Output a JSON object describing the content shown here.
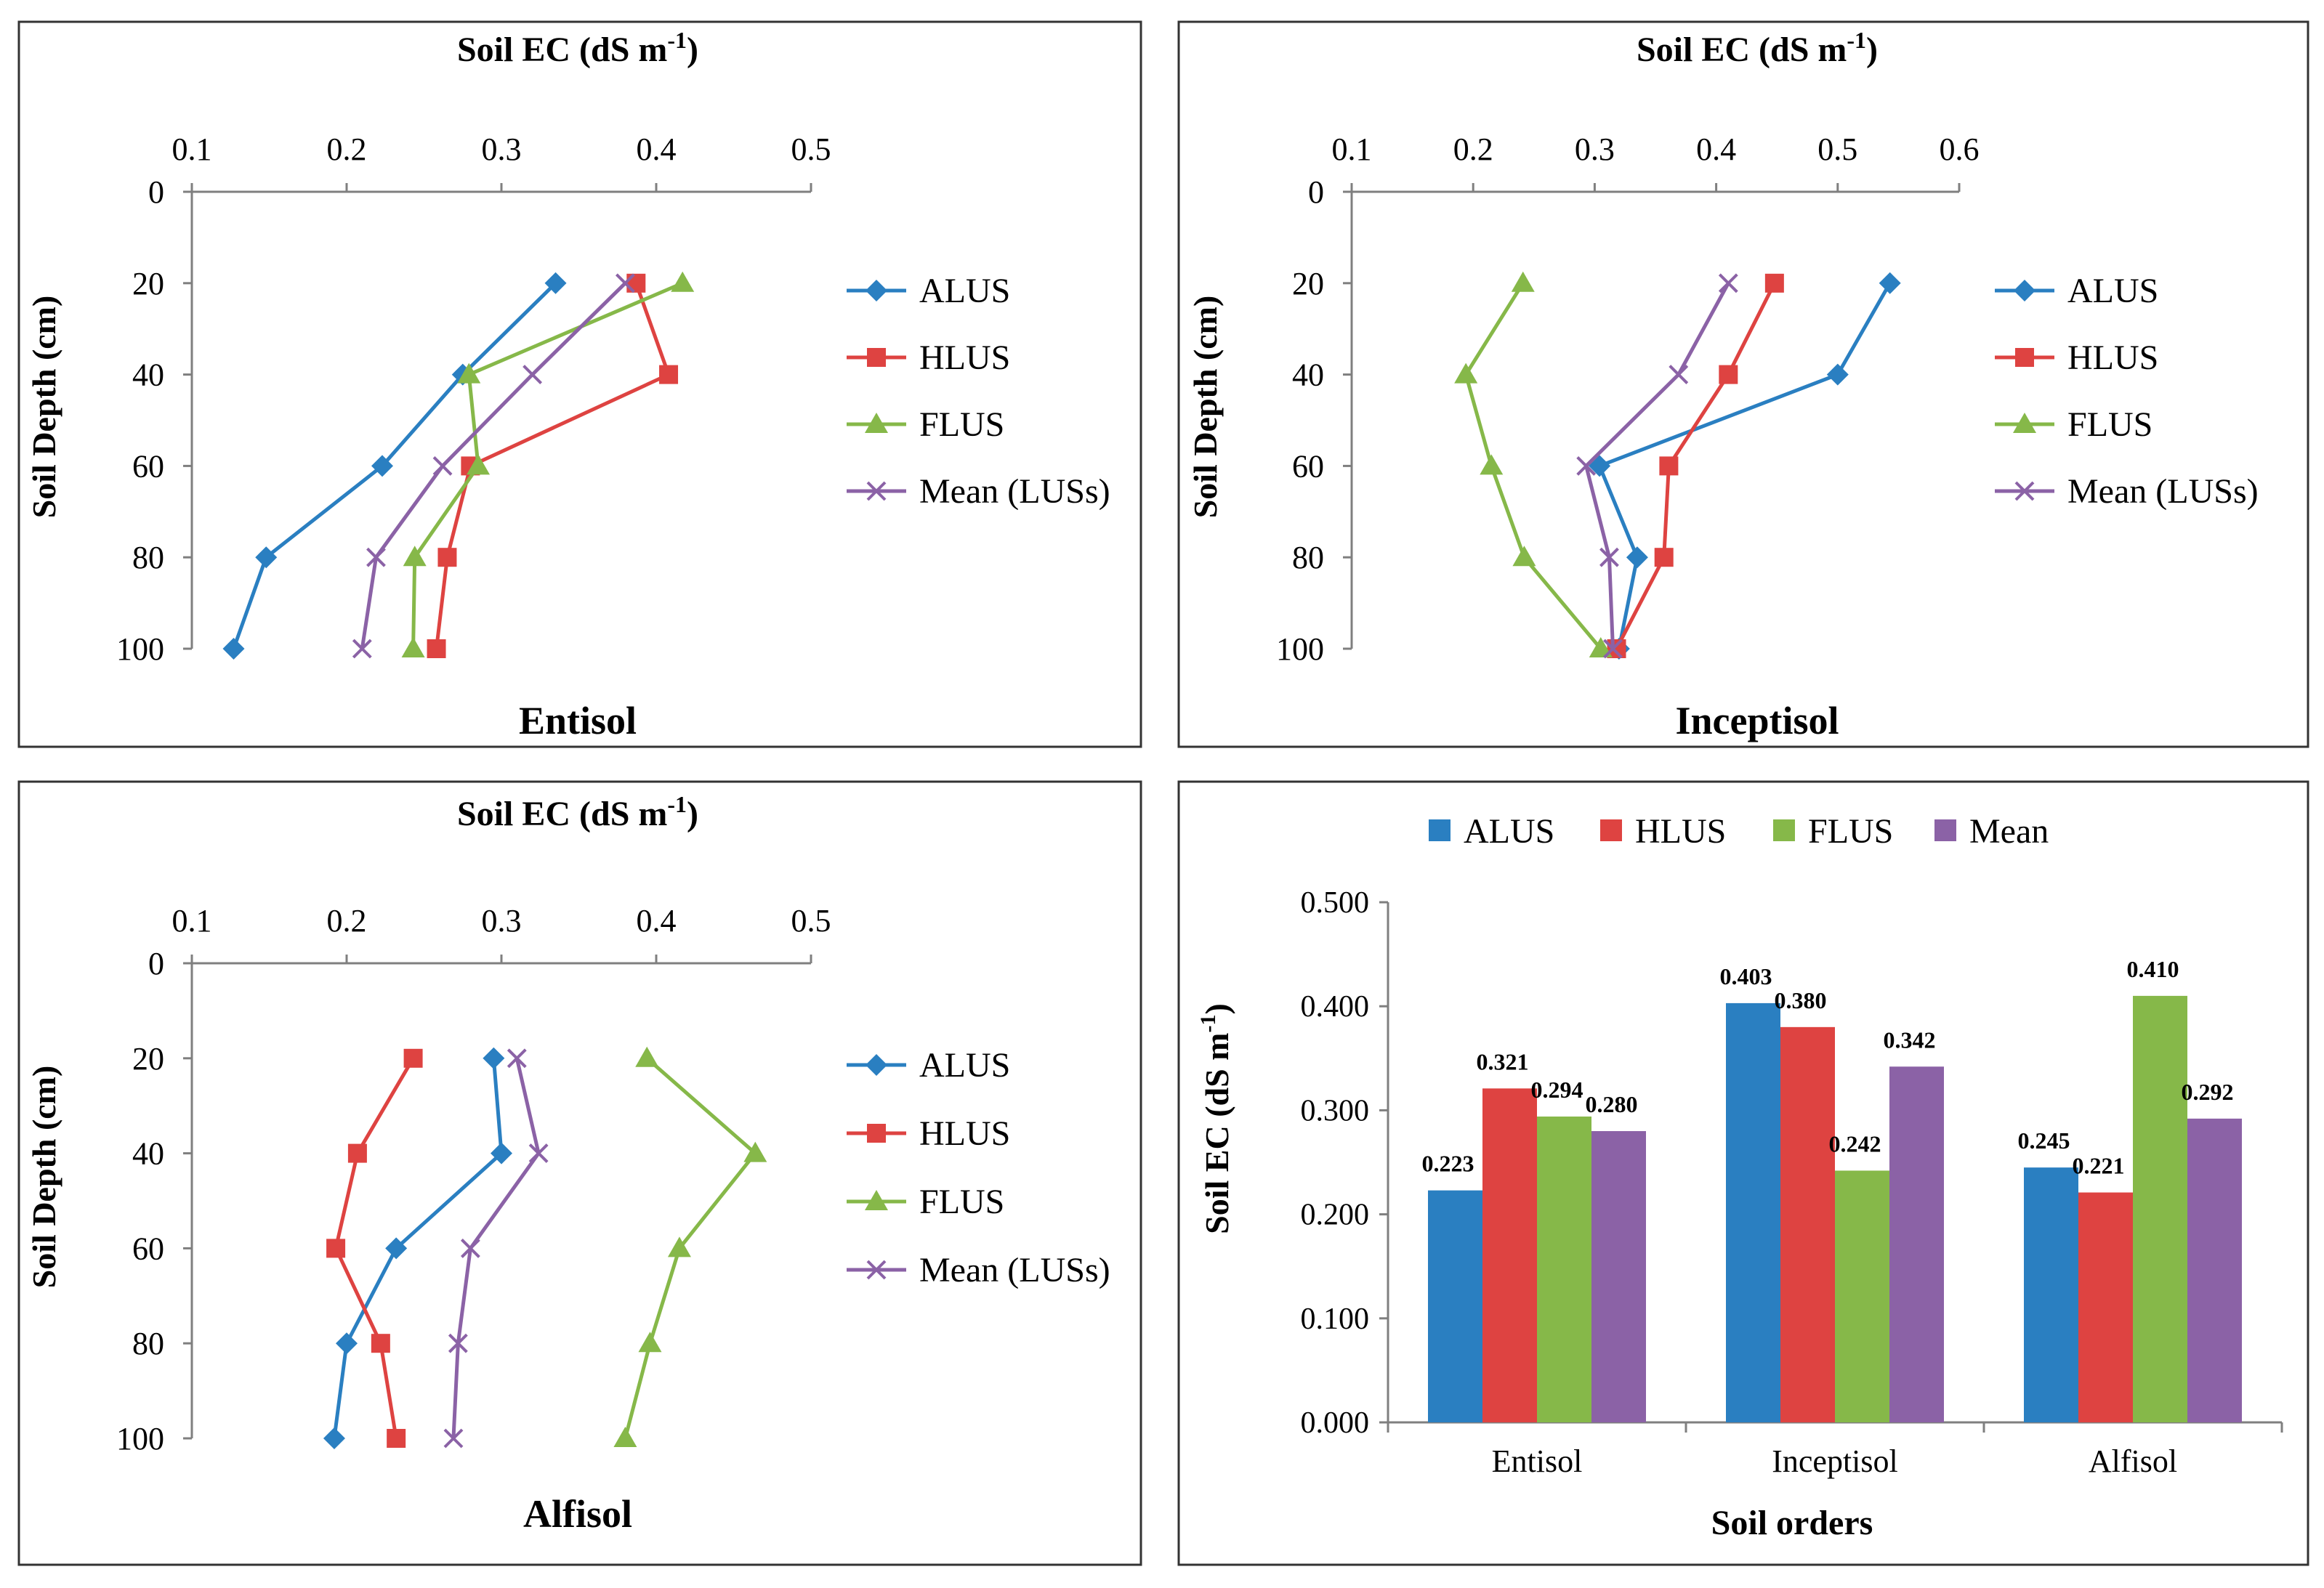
{
  "colors": {
    "ALUS": "#2a7fc1",
    "HLUS": "#de4341",
    "FLUS": "#86b849",
    "Mean": "#8b62a6",
    "frame": "#333333",
    "axis": "#7f7f7f"
  },
  "chart_data": [
    {
      "type": "line",
      "title": "Entisol",
      "xlabel": "Soil EC (dS m",
      "xlabel_sup": "-1",
      "xlabel_close": ")",
      "ylabel": "Soil Depth (cm)",
      "xlim": [
        0.1,
        0.5
      ],
      "xticks": [
        "0.1",
        "0.2",
        "0.3",
        "0.4",
        "0.5"
      ],
      "ylim": [
        0,
        100
      ],
      "yticks": [
        "0",
        "20",
        "40",
        "60",
        "80",
        "100"
      ],
      "y_inverted": true,
      "depth": [
        20,
        40,
        60,
        80,
        100
      ],
      "series": [
        {
          "name": "ALUS",
          "marker": "diamond",
          "values": [
            0.335,
            0.275,
            0.223,
            0.148,
            0.127
          ]
        },
        {
          "name": "HLUS",
          "marker": "square",
          "values": [
            0.387,
            0.408,
            0.28,
            0.265,
            0.258
          ]
        },
        {
          "name": "FLUS",
          "marker": "triangle",
          "values": [
            0.417,
            0.279,
            0.285,
            0.244,
            0.243
          ]
        },
        {
          "name": "Mean (LUSs)",
          "marker": "x",
          "values": [
            0.38,
            0.32,
            0.262,
            0.219,
            0.21
          ]
        }
      ]
    },
    {
      "type": "line",
      "title": "Inceptisol",
      "xlabel": "Soil EC (dS m",
      "xlabel_sup": "-1",
      "xlabel_close": ")",
      "ylabel": "Soil Depth (cm)",
      "xlim": [
        0.1,
        0.6
      ],
      "xticks": [
        "0.1",
        "0.2",
        "0.3",
        "0.4",
        "0.5",
        "0.6"
      ],
      "ylim": [
        0,
        100
      ],
      "yticks": [
        "0",
        "20",
        "40",
        "60",
        "80",
        "100"
      ],
      "y_inverted": true,
      "depth": [
        20,
        40,
        60,
        80,
        100
      ],
      "series": [
        {
          "name": "ALUS",
          "marker": "diamond",
          "values": [
            0.543,
            0.5,
            0.304,
            0.335,
            0.32
          ]
        },
        {
          "name": "HLUS",
          "marker": "square",
          "values": [
            0.448,
            0.41,
            0.361,
            0.357,
            0.318
          ]
        },
        {
          "name": "FLUS",
          "marker": "triangle",
          "values": [
            0.241,
            0.194,
            0.215,
            0.242,
            0.305
          ]
        },
        {
          "name": "Mean (LUSs)",
          "marker": "x",
          "values": [
            0.41,
            0.369,
            0.293,
            0.312,
            0.315
          ]
        }
      ]
    },
    {
      "type": "line",
      "title": "Alfisol",
      "xlabel": "Soil EC (dS m",
      "xlabel_sup": "-1",
      "xlabel_close": ")",
      "ylabel": "Soil Depth (cm)",
      "xlim": [
        0.1,
        0.5
      ],
      "xticks": [
        "0.1",
        "0.2",
        "0.3",
        "0.4",
        "0.5"
      ],
      "ylim": [
        0,
        100
      ],
      "yticks": [
        "0",
        "20",
        "40",
        "60",
        "80",
        "100"
      ],
      "y_inverted": true,
      "depth": [
        20,
        40,
        60,
        80,
        100
      ],
      "series": [
        {
          "name": "ALUS",
          "marker": "diamond",
          "values": [
            0.295,
            0.3,
            0.232,
            0.2,
            0.192
          ]
        },
        {
          "name": "HLUS",
          "marker": "square",
          "values": [
            0.243,
            0.207,
            0.193,
            0.222,
            0.232
          ]
        },
        {
          "name": "FLUS",
          "marker": "triangle",
          "values": [
            0.394,
            0.464,
            0.415,
            0.396,
            0.38
          ]
        },
        {
          "name": "Mean (LUSs)",
          "marker": "x",
          "values": [
            0.31,
            0.324,
            0.28,
            0.272,
            0.269
          ]
        }
      ]
    },
    {
      "type": "bar",
      "title": "",
      "xlabel": "Soil orders",
      "ylabel": "Soil EC (dS m",
      "ylabel_sup": "-1",
      "ylabel_close": ")",
      "ylim": [
        0,
        0.5
      ],
      "yticks": [
        "0.000",
        "0.100",
        "0.200",
        "0.300",
        "0.400",
        "0.500"
      ],
      "categories": [
        "Entisol",
        "Inceptisol",
        "Alfisol"
      ],
      "series": [
        {
          "name": "ALUS",
          "values": [
            0.223,
            0.403,
            0.245
          ],
          "labels": [
            "0.223",
            "0.403",
            "0.245"
          ]
        },
        {
          "name": "HLUS",
          "values": [
            0.321,
            0.38,
            0.221
          ],
          "labels": [
            "0.321",
            "0.380",
            "0.221"
          ]
        },
        {
          "name": "FLUS",
          "values": [
            0.294,
            0.242,
            0.41
          ],
          "labels": [
            "0.294",
            "0.242",
            "0.410"
          ]
        },
        {
          "name": "Mean",
          "values": [
            0.28,
            0.342,
            0.292
          ],
          "labels": [
            "0.280",
            "0.342",
            "0.292"
          ]
        }
      ]
    }
  ]
}
